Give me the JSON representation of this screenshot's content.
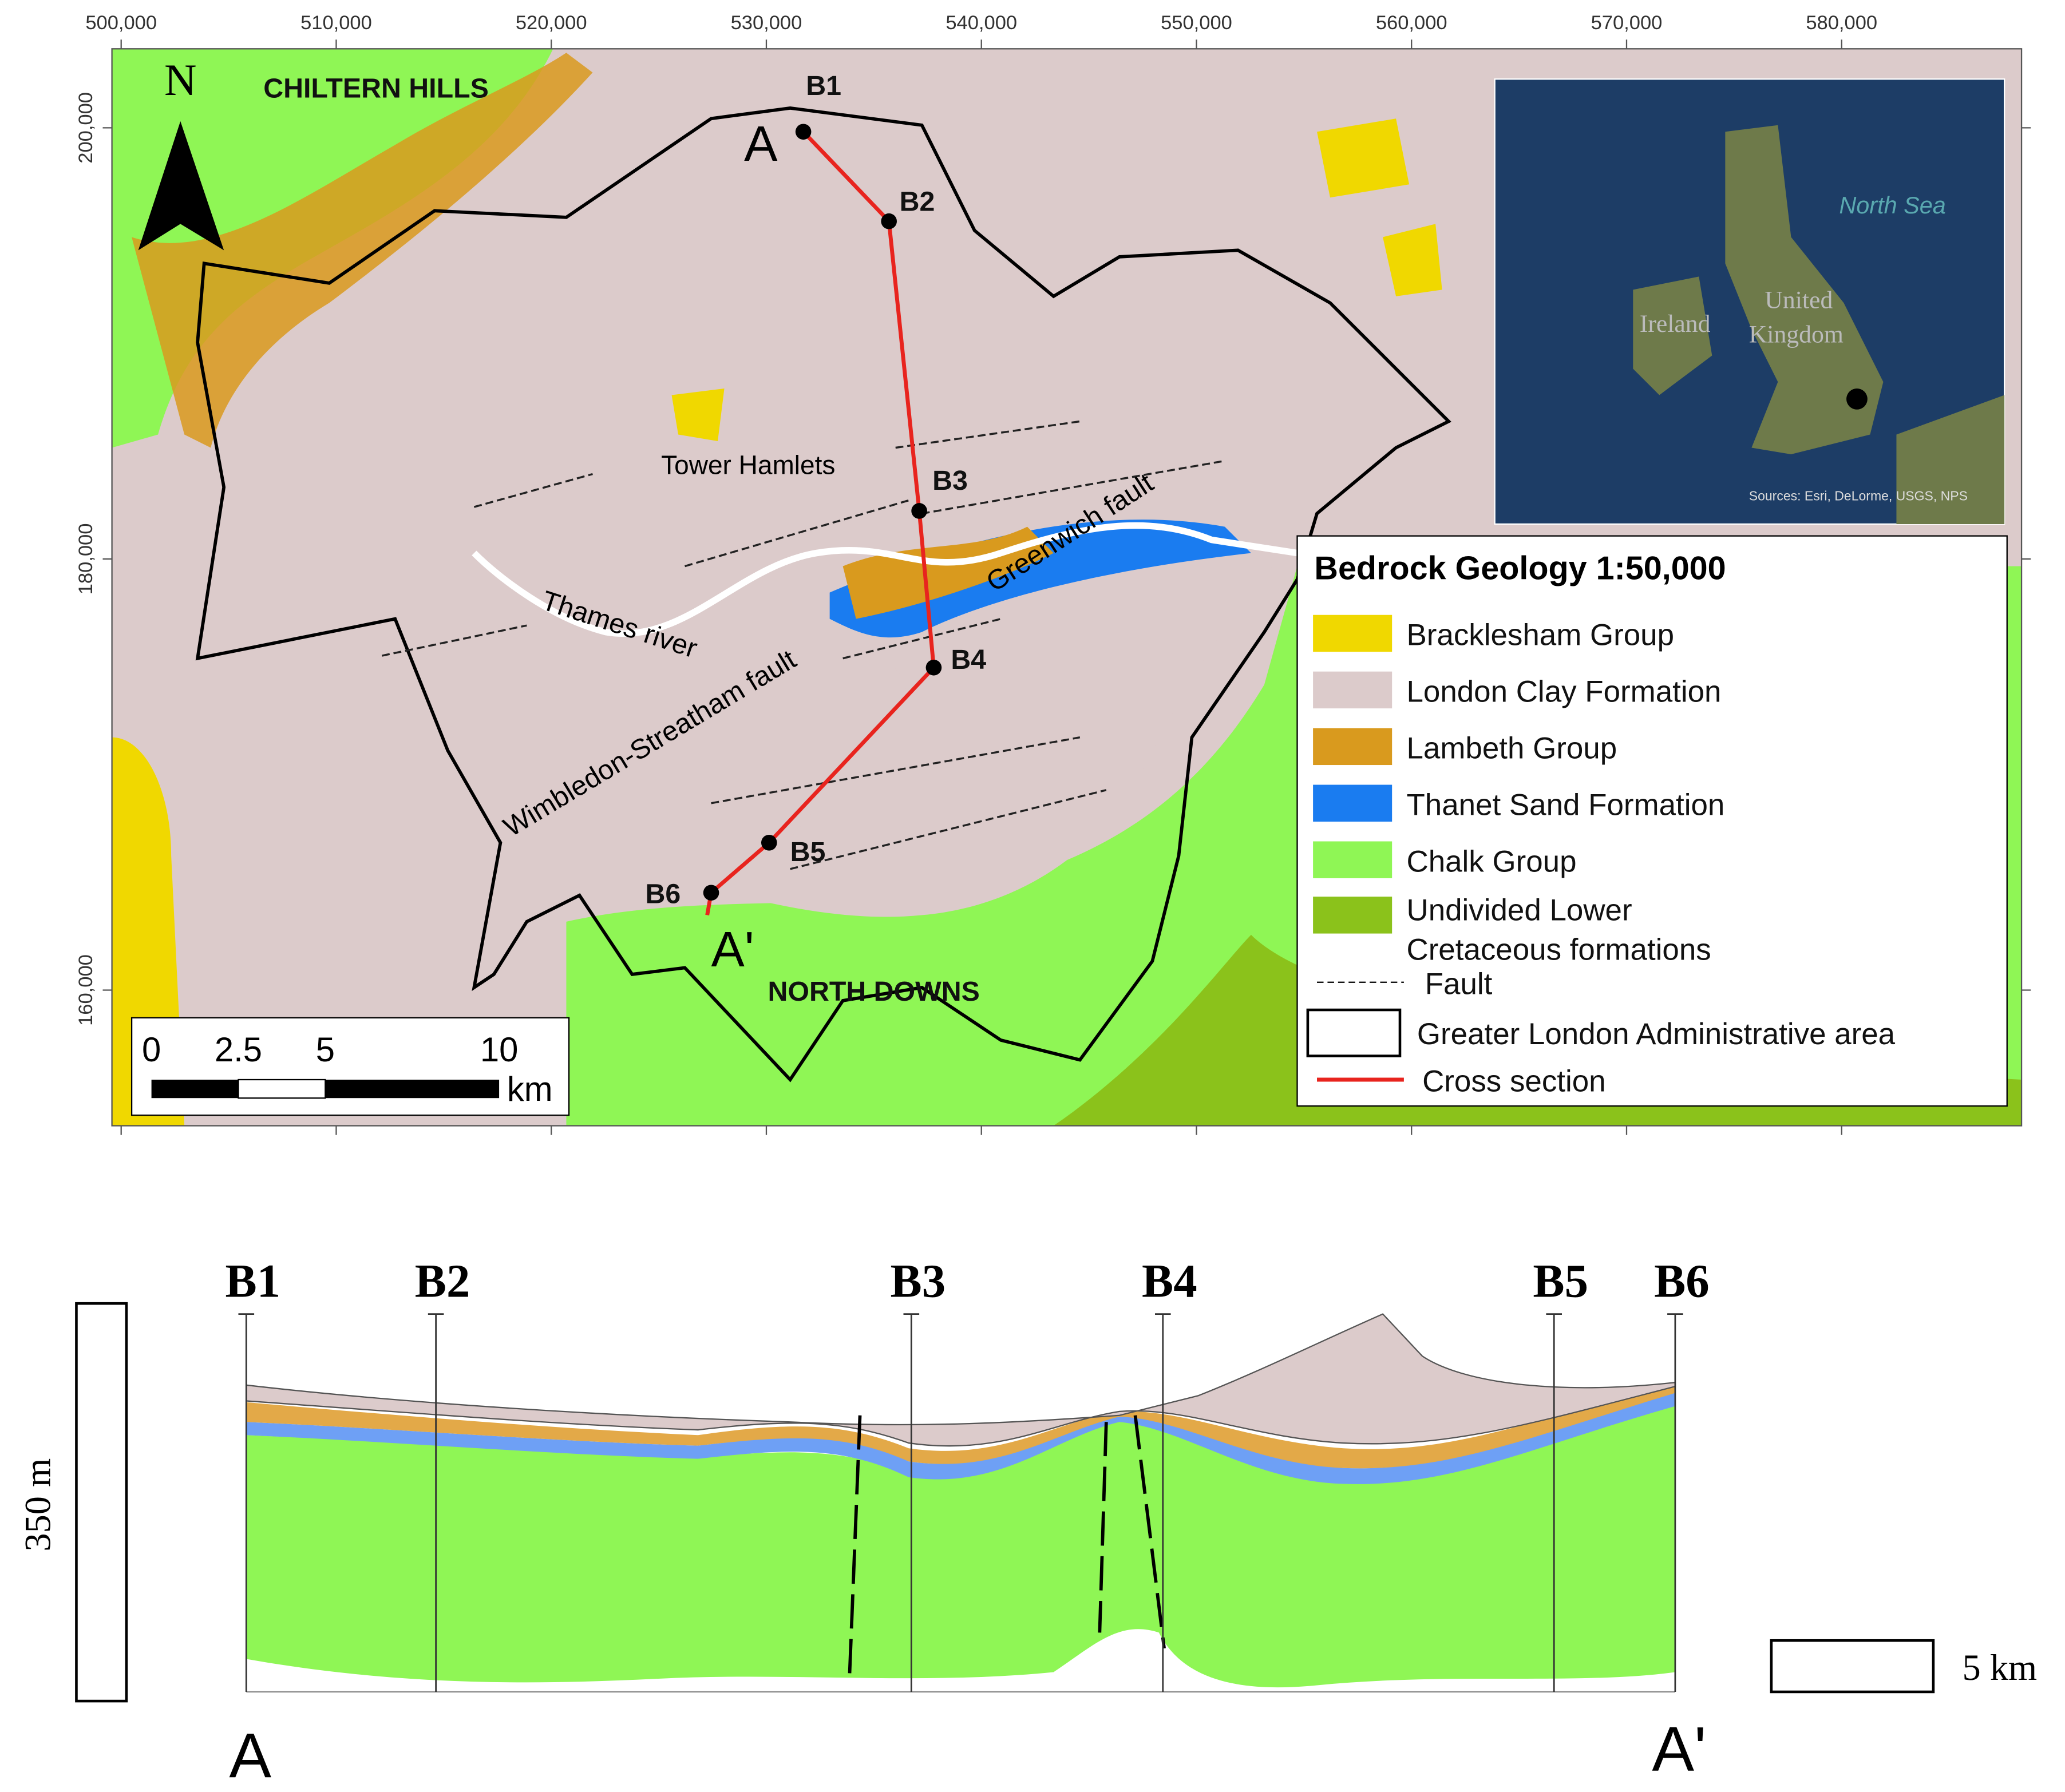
{
  "map": {
    "x_ticks": [
      "500,000",
      "510,000",
      "520,000",
      "530,000",
      "540,000",
      "550,000",
      "560,000",
      "570,000",
      "580,000"
    ],
    "y_ticks": [
      "200,000",
      "180,000",
      "160,000"
    ],
    "north": "N",
    "places": {
      "chiltern": "CHILTERN HILLS",
      "north_downs": "NORTH DOWNS",
      "tower_hamlets": "Tower Hamlets",
      "thames": "Thames river",
      "greenwich": "Greenwich fault",
      "wimbledon": "Wimbledon-Streatham fault"
    },
    "boreholes": [
      "B1",
      "B2",
      "B3",
      "B4",
      "B5",
      "B6"
    ],
    "section_ends": [
      "A",
      "A'"
    ],
    "inset": {
      "sea": "North Sea",
      "ireland": "Ireland",
      "uk_1": "United",
      "uk_2": "Kingdom",
      "credit": "Sources: Esri, DeLorme, USGS, NPS"
    },
    "scale_bar": {
      "labels": [
        "0",
        "2.5",
        "5",
        "10"
      ],
      "unit": "km"
    },
    "legend": {
      "title": "Bedrock Geology 1:50,000",
      "items": [
        "Bracklesham Group",
        "London Clay Formation",
        "Lambeth Group",
        "Thanet Sand Formation",
        "Chalk Group",
        "Undivided Lower",
        "Cretaceous formations",
        "Fault",
        "Greater London Administrative area",
        "Cross section"
      ]
    }
  },
  "cross_section": {
    "boreholes": [
      "B1",
      "B2",
      "B3",
      "B4",
      "B5",
      "B6"
    ],
    "vertical_scale": "350 m",
    "horizontal_scale": "5 km",
    "ends": [
      "A",
      "A'"
    ]
  }
}
